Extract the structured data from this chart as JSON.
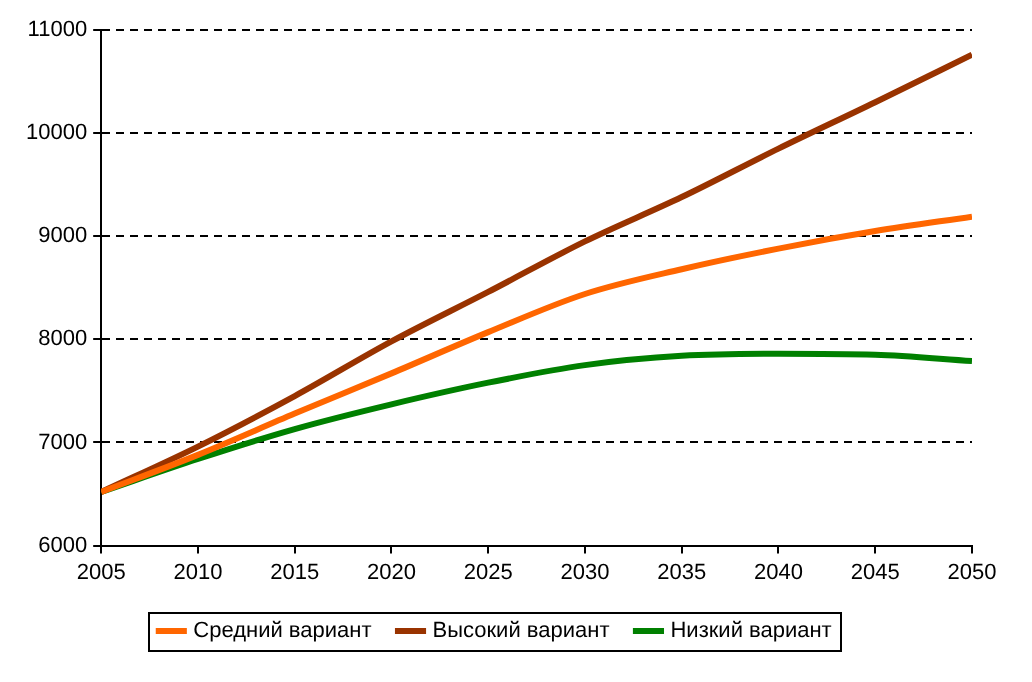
{
  "chart_data": {
    "type": "line",
    "x": [
      2005,
      2010,
      2015,
      2020,
      2025,
      2030,
      2035,
      2040,
      2045,
      2050
    ],
    "series": [
      {
        "name": "Средний вариант",
        "color": "#ff6600",
        "values": [
          6520,
          6880,
          7280,
          7670,
          8070,
          8440,
          8680,
          8880,
          9050,
          9190
        ]
      },
      {
        "name": "Высокий вариант",
        "color": "#993300",
        "values": [
          6520,
          6960,
          7450,
          7980,
          8460,
          8950,
          9380,
          9850,
          10300,
          10760
        ]
      },
      {
        "name": "Низкий вариант",
        "color": "#008000",
        "values": [
          6520,
          6840,
          7130,
          7370,
          7580,
          7750,
          7840,
          7860,
          7850,
          7790
        ]
      }
    ],
    "xlim": [
      2005,
      2050
    ],
    "xticks": [
      2005,
      2010,
      2015,
      2020,
      2025,
      2030,
      2035,
      2040,
      2045,
      2050
    ],
    "ylim": [
      6000,
      11000
    ],
    "yticks": [
      6000,
      7000,
      8000,
      9000,
      10000,
      11000
    ],
    "grid": "y",
    "legend": "bottom",
    "marker": "none",
    "line_style": "solid"
  }
}
